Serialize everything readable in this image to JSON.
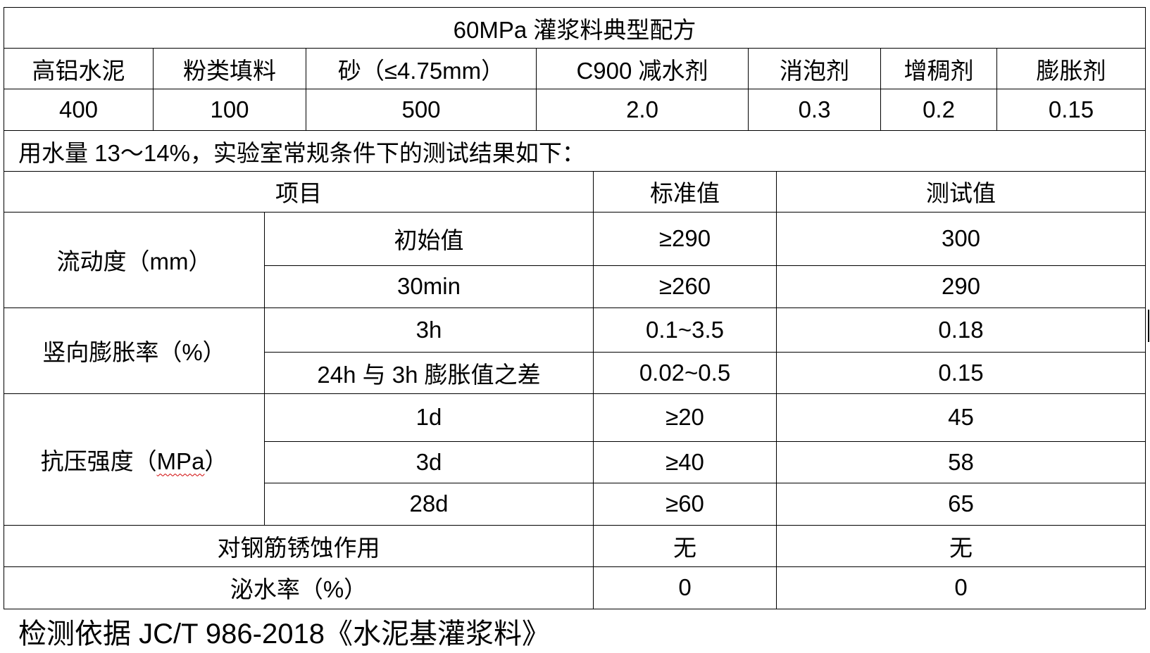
{
  "title": "60MPa 灌浆料典型配方",
  "formula": {
    "headers": [
      "高铝水泥",
      "粉类填料",
      "砂（≤4.75mm）",
      "C900 减水剂",
      "消泡剂",
      "增稠剂",
      "膨胀剂"
    ],
    "values": [
      "400",
      "100",
      "500",
      "2.0",
      "0.3",
      "0.2",
      "0.15"
    ]
  },
  "note": "用水量 13～14%，实验室常规条件下的测试结果如下：",
  "results": {
    "headers": [
      "项目",
      "标准值",
      "测试值"
    ],
    "groups": [
      {
        "name_pre": "流动度（mm）",
        "rows": [
          {
            "item": "初始值",
            "standard": "≥290",
            "test": "300"
          },
          {
            "item": "30min",
            "standard": "≥260",
            "test": "290"
          }
        ]
      },
      {
        "name_pre": "竖向膨胀率（%）",
        "rows": [
          {
            "item": "3h",
            "standard": "0.1~3.5",
            "test": "0.18"
          },
          {
            "item": "24h 与 3h 膨胀值之差",
            "standard": "0.02~0.5",
            "test": "0.15"
          }
        ]
      },
      {
        "name_pre": "抗压强度（",
        "name_mid": "MPa",
        "name_post": "）",
        "rows": [
          {
            "item": "1d",
            "standard": "≥20",
            "test": "45"
          },
          {
            "item": "3d",
            "standard": "≥40",
            "test": "58"
          },
          {
            "item": "28d",
            "standard": "≥60",
            "test": "65"
          }
        ]
      }
    ],
    "single_rows": [
      {
        "item": "对钢筋锈蚀作用",
        "standard": "无",
        "test": "无"
      },
      {
        "item": "泌水率（%）",
        "standard": "0",
        "test": "0"
      }
    ]
  },
  "footer": "检测依据 JC/T 986-2018《水泥基灌浆料》"
}
